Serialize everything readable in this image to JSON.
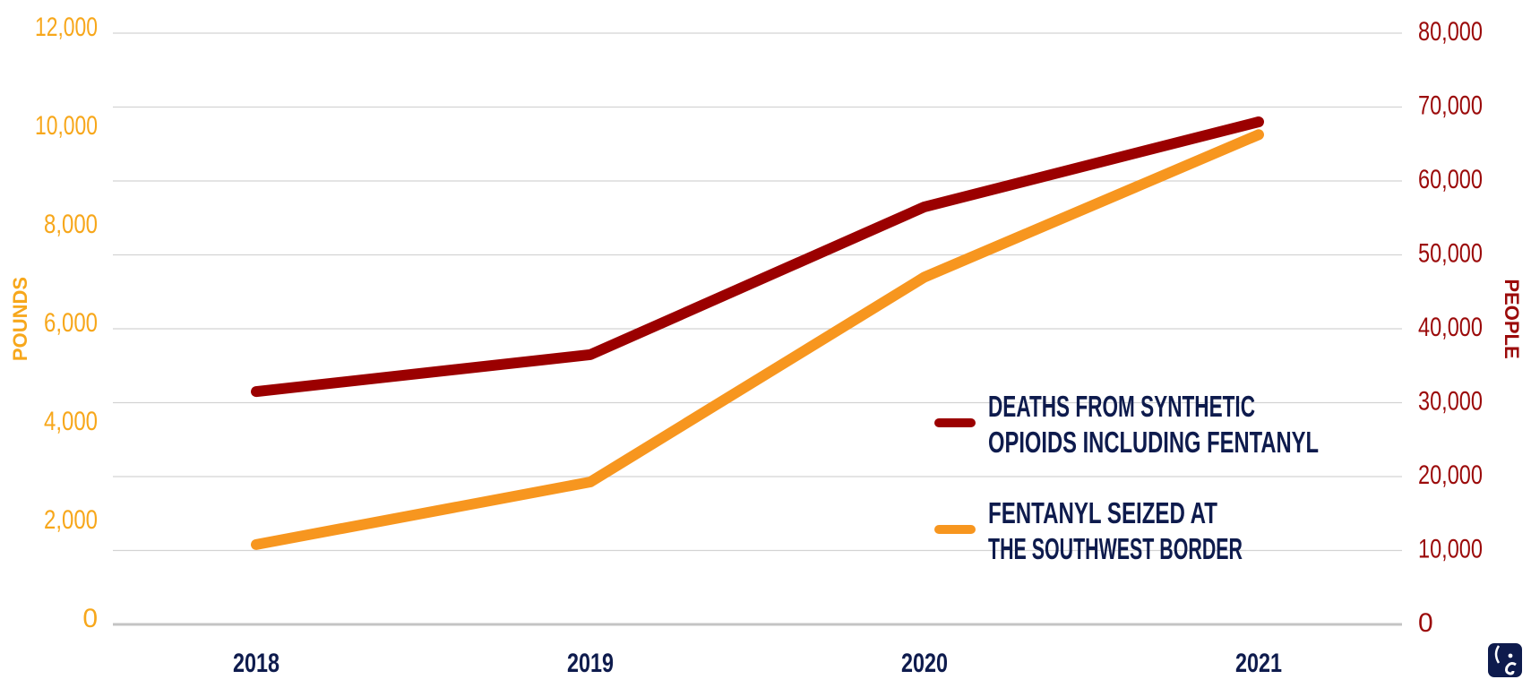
{
  "colors": {
    "deaths": "#9B0000",
    "seized": "#F7961F",
    "left_axis": "#F7A71B",
    "right_axis": "#9B0A0A",
    "text": "#0E1B4D",
    "grid": "#D3D3D3",
    "baseline": "#C4C4C4",
    "logo": "#0E1B4D"
  },
  "chart_data": {
    "type": "line",
    "title": "",
    "x": [
      "2018",
      "2019",
      "2020",
      "2021"
    ],
    "xlabel": "",
    "y_left": {
      "label": "POUNDS",
      "range": [
        0,
        12000
      ],
      "ticks": [
        "0",
        "2,000",
        "4,000",
        "6,000",
        "8,000",
        "10,000",
        "12,000"
      ],
      "tick_values": [
        0,
        2000,
        4000,
        6000,
        8000,
        10000,
        12000
      ]
    },
    "y_right": {
      "label": "PEOPLE",
      "range": [
        0,
        80000
      ],
      "ticks": [
        "0",
        "10,000",
        "20,000",
        "30,000",
        "40,000",
        "50,000",
        "60,000",
        "70,000",
        "80,000"
      ],
      "tick_values": [
        0,
        10000,
        20000,
        30000,
        40000,
        50000,
        60000,
        70000,
        80000
      ]
    },
    "grid": true,
    "legend_position": "bottom-right",
    "series": [
      {
        "name": "DEATHS FROM SYNTHETIC OPIOIDS INCLUDING FENTANYL",
        "legend_lines": [
          "DEATHS FROM SYNTHETIC",
          "OPIOIDS INCLUDING FENTANYL"
        ],
        "axis": "right",
        "color_key": "deaths",
        "values": [
          31500,
          36500,
          56500,
          68000
        ]
      },
      {
        "name": "FENTANYL SEIZED AT THE SOUTHWEST BORDER",
        "legend_lines": [
          "FENTANYL SEIZED AT",
          "THE SOUTHWEST BORDER"
        ],
        "axis": "left",
        "color_key": "seized",
        "values": [
          1620,
          2890,
          7050,
          9940
        ]
      }
    ]
  },
  "logo": {
    "icon": "elephant-logo-icon"
  }
}
